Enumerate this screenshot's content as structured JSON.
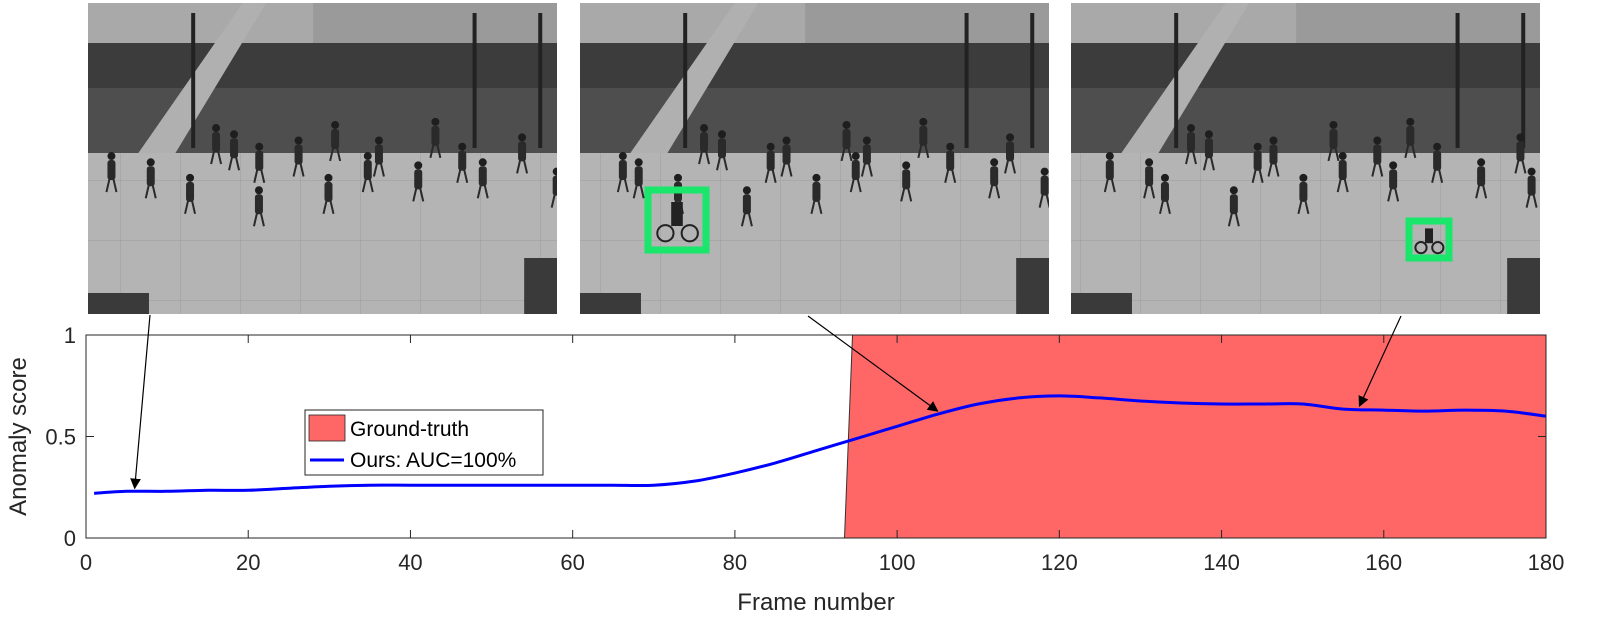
{
  "chart_data": {
    "type": "line",
    "xlabel": "Frame number",
    "ylabel": "Anomaly score",
    "xlim": [
      0,
      180
    ],
    "ylim": [
      0,
      1
    ],
    "xticks": [
      0,
      20,
      40,
      60,
      80,
      100,
      120,
      140,
      160,
      180
    ],
    "yticks": [
      0,
      0.5,
      1
    ],
    "ytick_labels": [
      "0",
      "0.5",
      "1"
    ],
    "grid": false,
    "legend_position": "center-left",
    "ground_truth": {
      "name": "Ground-truth",
      "x_start": 94.5,
      "x_end": 180,
      "value": 1,
      "color": "#ff6666"
    },
    "series": [
      {
        "name": "Ours: AUC=100%",
        "color": "#0000ff",
        "x": [
          1,
          5,
          10,
          15,
          20,
          25,
          30,
          35,
          40,
          45,
          50,
          55,
          60,
          65,
          70,
          75,
          80,
          85,
          90,
          95,
          100,
          105,
          110,
          115,
          120,
          125,
          130,
          135,
          140,
          145,
          150,
          155,
          160,
          165,
          170,
          175,
          180
        ],
        "y": [
          0.22,
          0.23,
          0.23,
          0.235,
          0.235,
          0.245,
          0.255,
          0.26,
          0.26,
          0.26,
          0.26,
          0.26,
          0.26,
          0.26,
          0.26,
          0.28,
          0.32,
          0.37,
          0.43,
          0.49,
          0.55,
          0.61,
          0.66,
          0.69,
          0.7,
          0.69,
          0.675,
          0.665,
          0.66,
          0.66,
          0.66,
          0.635,
          0.63,
          0.625,
          0.63,
          0.625,
          0.6
        ]
      }
    ],
    "frame_arrows": [
      {
        "panel": "frame-1",
        "frame": 6,
        "score": 0.23
      },
      {
        "panel": "frame-2",
        "frame": 105,
        "score": 0.61
      },
      {
        "panel": "frame-3",
        "frame": 157,
        "score": 0.635
      }
    ]
  }
}
